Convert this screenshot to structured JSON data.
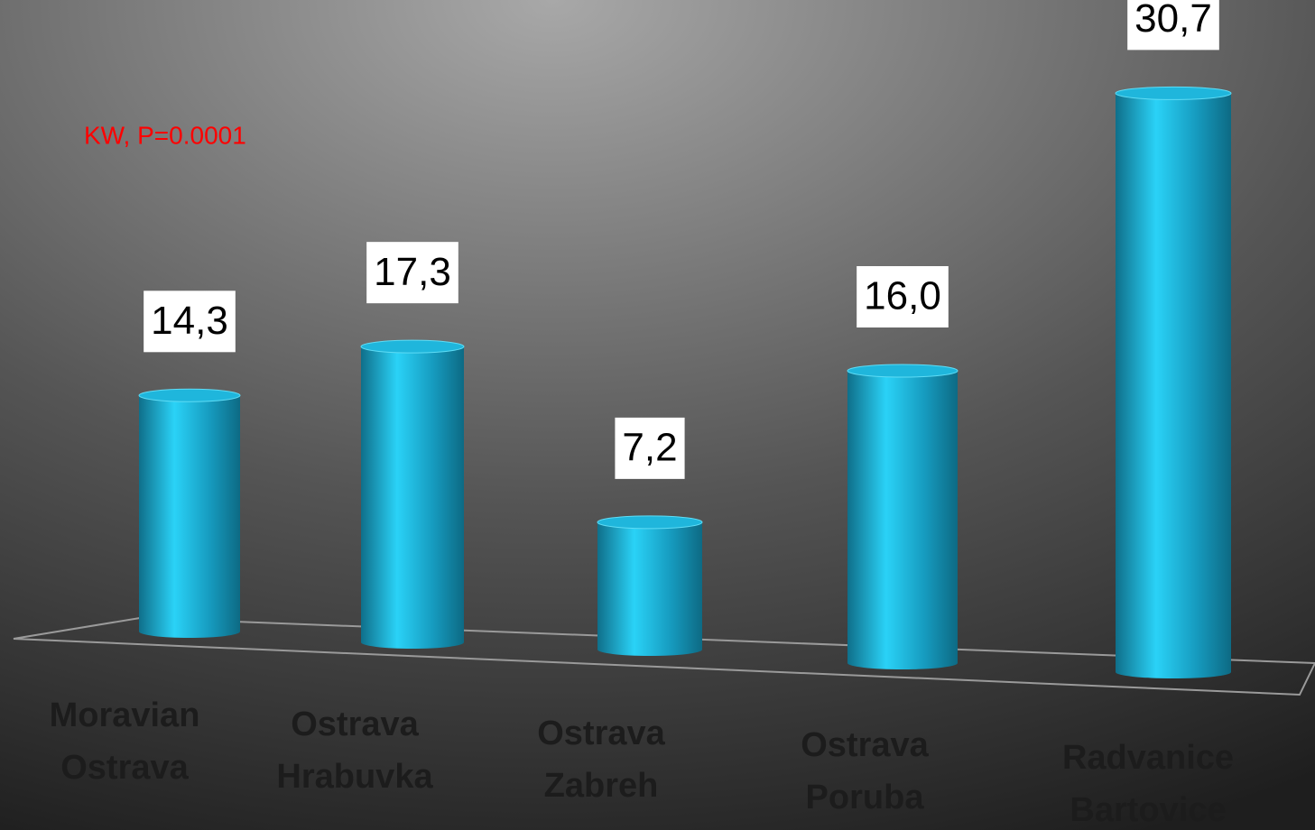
{
  "chart_data": {
    "type": "bar3d-cylinder",
    "annotation": "KW, P=0.0001",
    "categories": [
      "Moravian Ostrava",
      "Ostrava Hrabuvka",
      "Ostrava Zabreh",
      "Ostrava Poruba",
      "Radvanice Bartovice"
    ],
    "values": [
      14.3,
      17.3,
      7.2,
      16.0,
      30.7
    ],
    "value_labels": [
      "14,3",
      "17,3",
      "7,2",
      "16,0",
      "30,7"
    ],
    "color": "#1fb6dc"
  }
}
